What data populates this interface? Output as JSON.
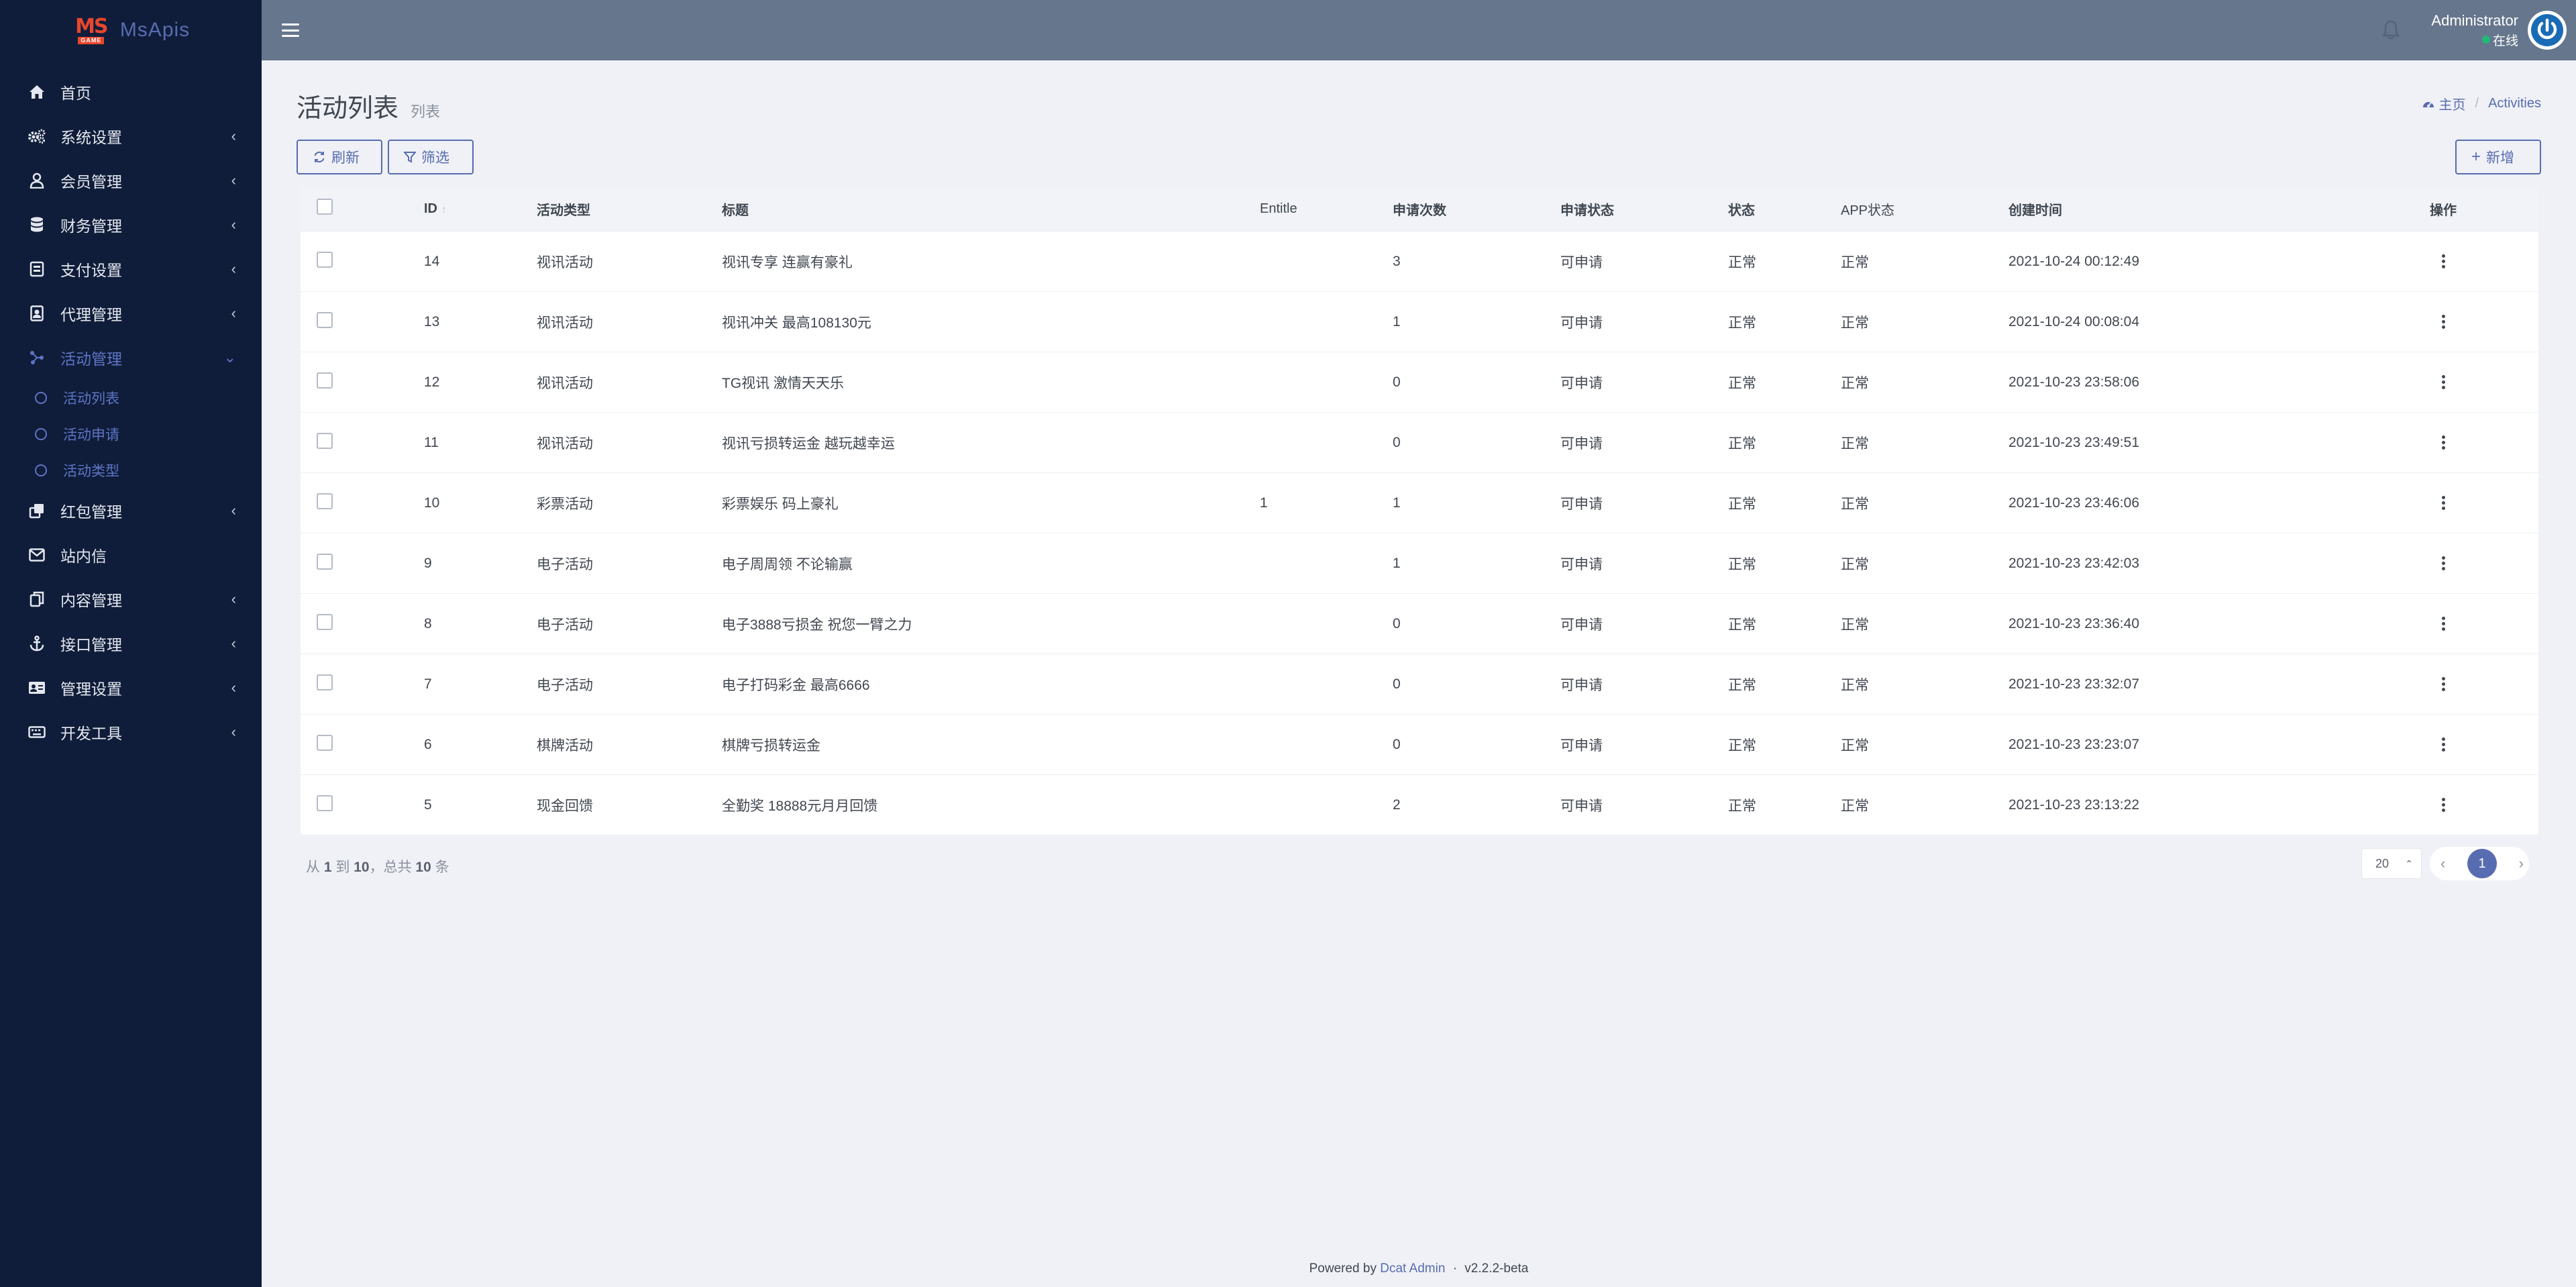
{
  "brand": {
    "logo_top": "MS",
    "logo_bottom": "GAME",
    "name": "MsApis"
  },
  "sidebar": {
    "items": [
      {
        "label": "首页",
        "icon": "home-icon",
        "has_arrow": false
      },
      {
        "label": "系统设置",
        "icon": "gears-icon",
        "has_arrow": true
      },
      {
        "label": "会员管理",
        "icon": "user-icon",
        "has_arrow": true
      },
      {
        "label": "财务管理",
        "icon": "database-icon",
        "has_arrow": true
      },
      {
        "label": "支付设置",
        "icon": "credit-card-icon",
        "has_arrow": true
      },
      {
        "label": "代理管理",
        "icon": "id-badge-icon",
        "has_arrow": true
      },
      {
        "label": "活动管理",
        "icon": "connections-icon",
        "has_arrow": true,
        "active": true
      },
      {
        "label": "红包管理",
        "icon": "clone-icon",
        "has_arrow": true
      },
      {
        "label": "站内信",
        "icon": "envelope-icon",
        "has_arrow": false
      },
      {
        "label": "内容管理",
        "icon": "copy-icon",
        "has_arrow": true
      },
      {
        "label": "接口管理",
        "icon": "anchor-icon",
        "has_arrow": true
      },
      {
        "label": "管理设置",
        "icon": "id-card-icon",
        "has_arrow": true
      },
      {
        "label": "开发工具",
        "icon": "keyboard-icon",
        "has_arrow": true
      }
    ],
    "submenu": [
      "活动列表",
      "活动申请",
      "活动类型"
    ]
  },
  "header": {
    "user_name": "Administrator",
    "user_status": "在线"
  },
  "page": {
    "title": "活动列表",
    "subtitle": "列表",
    "breadcrumb_home": "主页",
    "breadcrumb_current": "Activities"
  },
  "toolbar": {
    "refresh_label": "刷新",
    "filter_label": "筛选",
    "add_label": "新增"
  },
  "table": {
    "headers": {
      "id": "ID",
      "type": "活动类型",
      "title": "标题",
      "entitle": "Entitle",
      "count": "申请次数",
      "apply": "申请状态",
      "status": "状态",
      "app": "APP状态",
      "time": "创建时间",
      "op": "操作"
    },
    "rows": [
      {
        "id": "14",
        "type": "视讯活动",
        "title": "视讯专享 连赢有豪礼",
        "entitle": "",
        "count": "3",
        "apply": "可申请",
        "status": "正常",
        "app": "正常",
        "time": "2021-10-24 00:12:49"
      },
      {
        "id": "13",
        "type": "视讯活动",
        "title": "视讯冲关 最高108130元",
        "entitle": "",
        "count": "1",
        "apply": "可申请",
        "status": "正常",
        "app": "正常",
        "time": "2021-10-24 00:08:04"
      },
      {
        "id": "12",
        "type": "视讯活动",
        "title": "TG视讯 激情天天乐",
        "entitle": "",
        "count": "0",
        "apply": "可申请",
        "status": "正常",
        "app": "正常",
        "time": "2021-10-23 23:58:06"
      },
      {
        "id": "11",
        "type": "视讯活动",
        "title": "视讯亏损转运金 越玩越幸运",
        "entitle": "",
        "count": "0",
        "apply": "可申请",
        "status": "正常",
        "app": "正常",
        "time": "2021-10-23 23:49:51"
      },
      {
        "id": "10",
        "type": "彩票活动",
        "title": "彩票娱乐 码上豪礼",
        "entitle": "1",
        "count": "1",
        "apply": "可申请",
        "status": "正常",
        "app": "正常",
        "time": "2021-10-23 23:46:06"
      },
      {
        "id": "9",
        "type": "电子活动",
        "title": "电子周周领 不论输赢",
        "entitle": "",
        "count": "1",
        "apply": "可申请",
        "status": "正常",
        "app": "正常",
        "time": "2021-10-23 23:42:03"
      },
      {
        "id": "8",
        "type": "电子活动",
        "title": "电子3888亏损金 祝您一臂之力",
        "entitle": "",
        "count": "0",
        "apply": "可申请",
        "status": "正常",
        "app": "正常",
        "time": "2021-10-23 23:36:40"
      },
      {
        "id": "7",
        "type": "电子活动",
        "title": "电子打码彩金 最高6666",
        "entitle": "",
        "count": "0",
        "apply": "可申请",
        "status": "正常",
        "app": "正常",
        "time": "2021-10-23 23:32:07"
      },
      {
        "id": "6",
        "type": "棋牌活动",
        "title": "棋牌亏损转运金",
        "entitle": "",
        "count": "0",
        "apply": "可申请",
        "status": "正常",
        "app": "正常",
        "time": "2021-10-23 23:23:07"
      },
      {
        "id": "5",
        "type": "现金回馈",
        "title": "全勤奖 18888元月月回馈",
        "entitle": "",
        "count": "2",
        "apply": "可申请",
        "status": "正常",
        "app": "正常",
        "time": "2021-10-23 23:13:22"
      }
    ]
  },
  "pagination": {
    "from_label": "从",
    "from": "1",
    "to_label": "到",
    "to": "10",
    "total_label": "，总共",
    "total": "10",
    "unit": "条",
    "per_page": "20",
    "current_page": "1"
  },
  "footer": {
    "powered_by": "Powered by",
    "link": "Dcat Admin",
    "separator": "·",
    "version": "v2.2.2-beta"
  },
  "colors": {
    "sidebar_bg": "#0f1d3a",
    "header_bg": "#66768d",
    "accent": "#586cb1",
    "page_bg": "#eff1f6"
  }
}
